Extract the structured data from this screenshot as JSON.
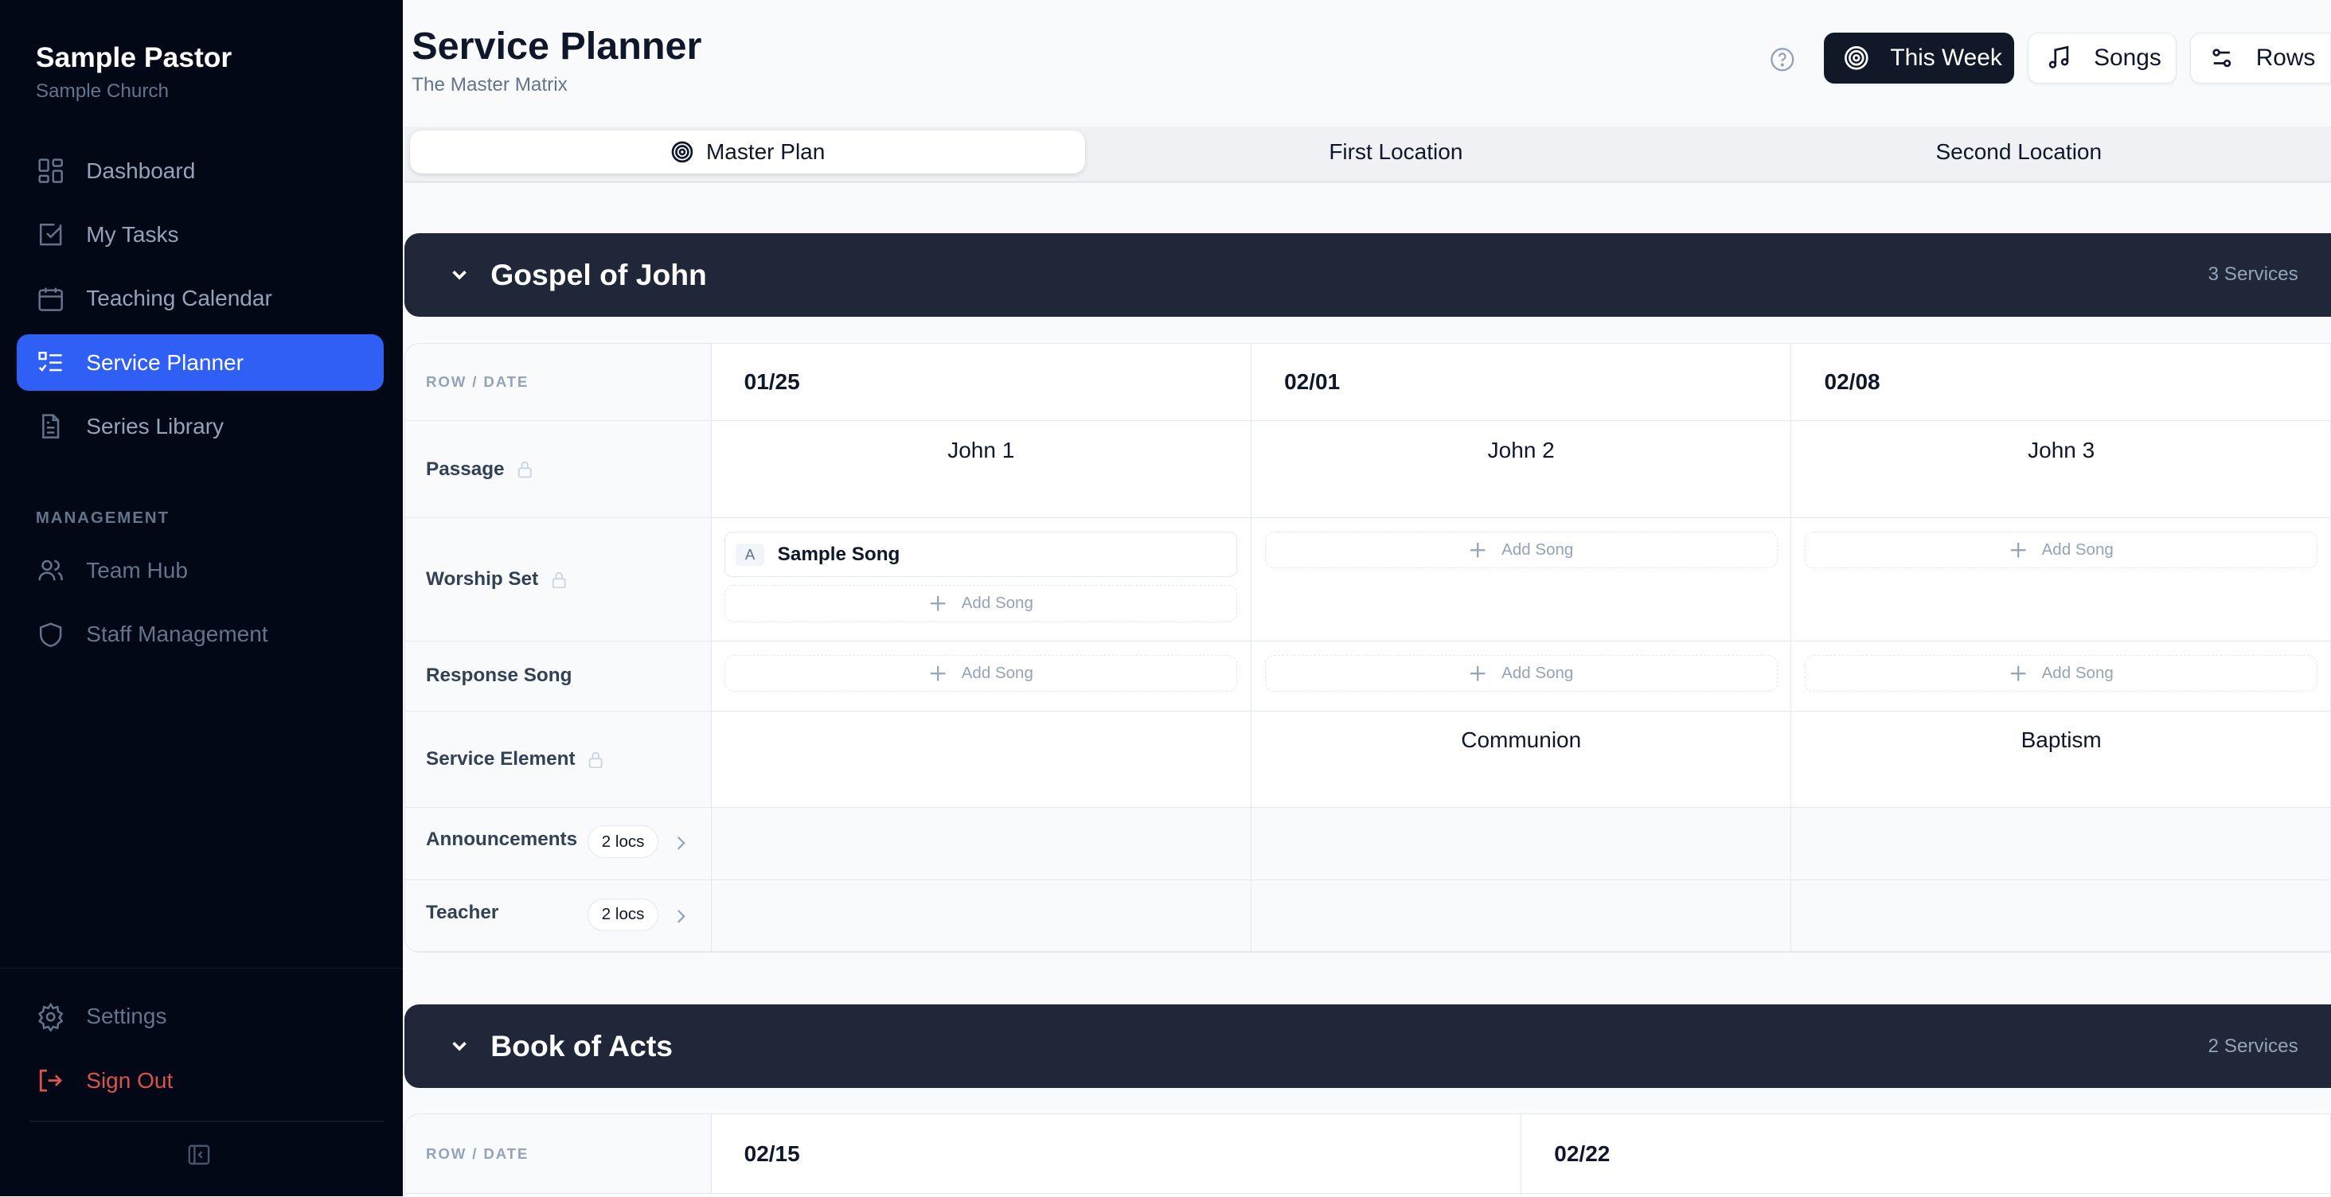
{
  "sidebar": {
    "user": "Sample Pastor",
    "church": "Sample Church",
    "items": [
      {
        "label": "Dashboard",
        "icon": "dashboard-icon"
      },
      {
        "label": "My Tasks",
        "icon": "check-square-icon"
      },
      {
        "label": "Teaching Calendar",
        "icon": "calendar-icon"
      },
      {
        "label": "Service Planner",
        "icon": "list-check-icon",
        "active": true
      },
      {
        "label": "Series Library",
        "icon": "file-text-icon"
      }
    ],
    "management_heading": "MANAGEMENT",
    "management": [
      {
        "label": "Team Hub",
        "icon": "users-icon"
      },
      {
        "label": "Staff Management",
        "icon": "shield-icon"
      }
    ],
    "settings": "Settings",
    "signout": "Sign Out"
  },
  "header": {
    "title": "Service Planner",
    "subtitle": "The Master Matrix",
    "this_week": "This Week",
    "songs": "Songs",
    "rows": "Rows"
  },
  "tabs": [
    {
      "label": "Master Plan",
      "active": true
    },
    {
      "label": "First Location"
    },
    {
      "label": "Second Location"
    }
  ],
  "colors": {
    "accent": "#2f5ff5",
    "danger": "#d9534f",
    "section": "#1f2739"
  },
  "series": [
    {
      "name": "Gospel of John",
      "count": "3 Services",
      "row_header": "ROW / DATE",
      "dates": [
        "01/25",
        "02/01",
        "02/08"
      ],
      "rows": [
        {
          "label": "Passage",
          "locked": true,
          "values": [
            "John 1",
            "John 2",
            "John 3"
          ]
        },
        {
          "label": "Worship Set",
          "locked": true,
          "songs": [
            [
              {
                "key": "A",
                "title": "Sample Song"
              }
            ],
            [],
            []
          ]
        },
        {
          "label": "Response Song",
          "songs": [
            [],
            [],
            []
          ]
        },
        {
          "label": "Service Element",
          "locked": true,
          "values": [
            "",
            "Communion",
            "Baptism"
          ]
        },
        {
          "label": "Announcements",
          "badge": "2 locs"
        },
        {
          "label": "Teacher",
          "badge": "2 locs"
        }
      ]
    },
    {
      "name": "Book of Acts",
      "count": "2 Services",
      "row_header": "ROW / DATE",
      "dates": [
        "02/15",
        "02/22"
      ],
      "rows": []
    }
  ],
  "add_song": "Add Song"
}
